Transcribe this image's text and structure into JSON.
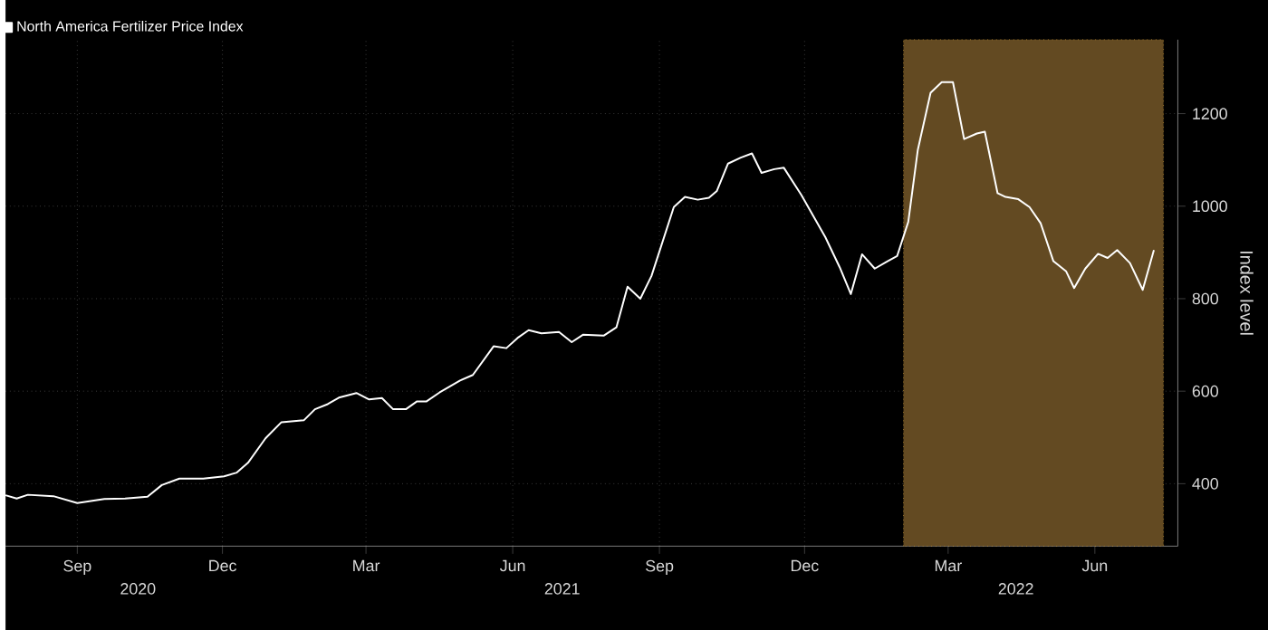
{
  "chart_data": {
    "type": "line",
    "ylabel": "Index level",
    "legend": "top left",
    "grid": true,
    "marker": "none",
    "line_style": "solid",
    "xlim": [
      "2020-07-18",
      "2022-07-23"
    ],
    "ylim": [
      265,
      1360
    ],
    "xticks": [
      {
        "value": "2020-09-01",
        "label": "Sep"
      },
      {
        "value": "2020-12-01",
        "label": "Dec"
      },
      {
        "value": "2021-03-01",
        "label": "Mar"
      },
      {
        "value": "2021-06-01",
        "label": "Jun"
      },
      {
        "value": "2021-09-01",
        "label": "Sep"
      },
      {
        "value": "2021-12-01",
        "label": "Dec"
      },
      {
        "value": "2022-03-01",
        "label": "Mar"
      },
      {
        "value": "2022-06-01",
        "label": "Jun"
      }
    ],
    "yticks": [
      400,
      600,
      800,
      1000,
      1200
    ],
    "annotations": [
      "2020",
      "2021",
      "2022"
    ],
    "bands": [
      {
        "axis": "x",
        "from": "2022-02-01",
        "to": "2022-07-14",
        "color": "#634a22"
      }
    ],
    "series": [
      {
        "name": "North America Fertilizer Price Index",
        "color": "#ffffff",
        "x": [
          "2020-07-18",
          "2020-07-25",
          "2020-08-01",
          "2020-08-17",
          "2020-09-01",
          "2020-09-18",
          "2020-10-01",
          "2020-10-15",
          "2020-10-24",
          "2020-11-04",
          "2020-11-19",
          "2020-12-02",
          "2020-12-10",
          "2020-12-17",
          "2020-12-28",
          "2021-01-07",
          "2021-01-21",
          "2021-01-28",
          "2021-02-05",
          "2021-02-12",
          "2021-02-23",
          "2021-03-03",
          "2021-03-11",
          "2021-03-18",
          "2021-03-26",
          "2021-04-02",
          "2021-04-08",
          "2021-04-16",
          "2021-04-29",
          "2021-05-07",
          "2021-05-20",
          "2021-05-28",
          "2021-06-04",
          "2021-06-11",
          "2021-06-19",
          "2021-06-30",
          "2021-07-08",
          "2021-07-15",
          "2021-07-28",
          "2021-08-05",
          "2021-08-12",
          "2021-08-20",
          "2021-08-27",
          "2021-09-10",
          "2021-09-17",
          "2021-09-25",
          "2021-10-02",
          "2021-10-07",
          "2021-10-14",
          "2021-10-22",
          "2021-10-29",
          "2021-11-04",
          "2021-11-12",
          "2021-11-18",
          "2021-11-29",
          "2021-12-14",
          "2021-12-23",
          "2021-12-30",
          "2022-01-06",
          "2022-01-14",
          "2022-01-22",
          "2022-01-28",
          "2022-02-04",
          "2022-02-10",
          "2022-02-18",
          "2022-02-25",
          "2022-03-04",
          "2022-03-11",
          "2022-03-19",
          "2022-03-24",
          "2022-04-01",
          "2022-04-06",
          "2022-04-14",
          "2022-04-21",
          "2022-04-28",
          "2022-05-06",
          "2022-05-14",
          "2022-05-19",
          "2022-05-26",
          "2022-06-03",
          "2022-06-09",
          "2022-06-15",
          "2022-06-23",
          "2022-07-01",
          "2022-07-08"
        ],
        "values": [
          375,
          368,
          376,
          373,
          358,
          367,
          368,
          372,
          397,
          411,
          411,
          416,
          424,
          445,
          498,
          533,
          537,
          561,
          572,
          586,
          596,
          582,
          585,
          561,
          561,
          578,
          578,
          597,
          623,
          635,
          697,
          693,
          715,
          732,
          725,
          728,
          706,
          722,
          720,
          738,
          826,
          800,
          849,
          998,
          1020,
          1014,
          1018,
          1033,
          1092,
          1105,
          1114,
          1072,
          1080,
          1083,
          1024,
          933,
          868,
          810,
          896,
          865,
          881,
          892,
          966,
          1122,
          1245,
          1268,
          1268,
          1145,
          1157,
          1161,
          1028,
          1020,
          1015,
          998,
          963,
          881,
          859,
          823,
          865,
          897,
          888,
          905,
          877,
          819,
          905
        ]
      }
    ]
  }
}
